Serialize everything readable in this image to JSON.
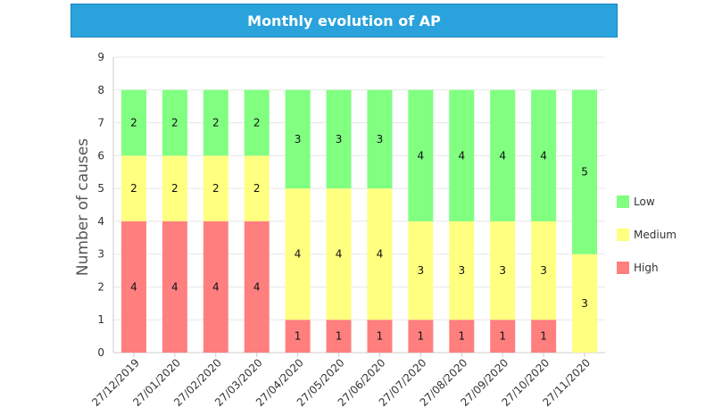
{
  "chart_data": {
    "type": "bar",
    "stacked": true,
    "title": "Monthly evolution of AP",
    "xlabel": "",
    "ylabel": "Number of causes",
    "ylim": [
      0,
      9
    ],
    "yticks": [
      0,
      1,
      2,
      3,
      4,
      5,
      6,
      7,
      8,
      9
    ],
    "grid": true,
    "legend_position": "right",
    "categories": [
      "27/12/2019",
      "27/01/2020",
      "27/02/2020",
      "27/03/2020",
      "27/04/2020",
      "27/05/2020",
      "27/06/2020",
      "27/07/2020",
      "27/08/2020",
      "27/09/2020",
      "27/10/2020",
      "27/11/2020"
    ],
    "series": [
      {
        "name": "High",
        "color": "#ff7f7f",
        "values": [
          4,
          4,
          4,
          4,
          1,
          1,
          1,
          1,
          1,
          1,
          1,
          0
        ]
      },
      {
        "name": "Medium",
        "color": "#ffff80",
        "values": [
          2,
          2,
          2,
          2,
          4,
          4,
          4,
          3,
          3,
          3,
          3,
          3
        ]
      },
      {
        "name": "Low",
        "color": "#80ff80",
        "values": [
          2,
          2,
          2,
          2,
          3,
          3,
          3,
          4,
          4,
          4,
          4,
          5
        ]
      }
    ],
    "legend_order": [
      "Low",
      "Medium",
      "High"
    ]
  }
}
